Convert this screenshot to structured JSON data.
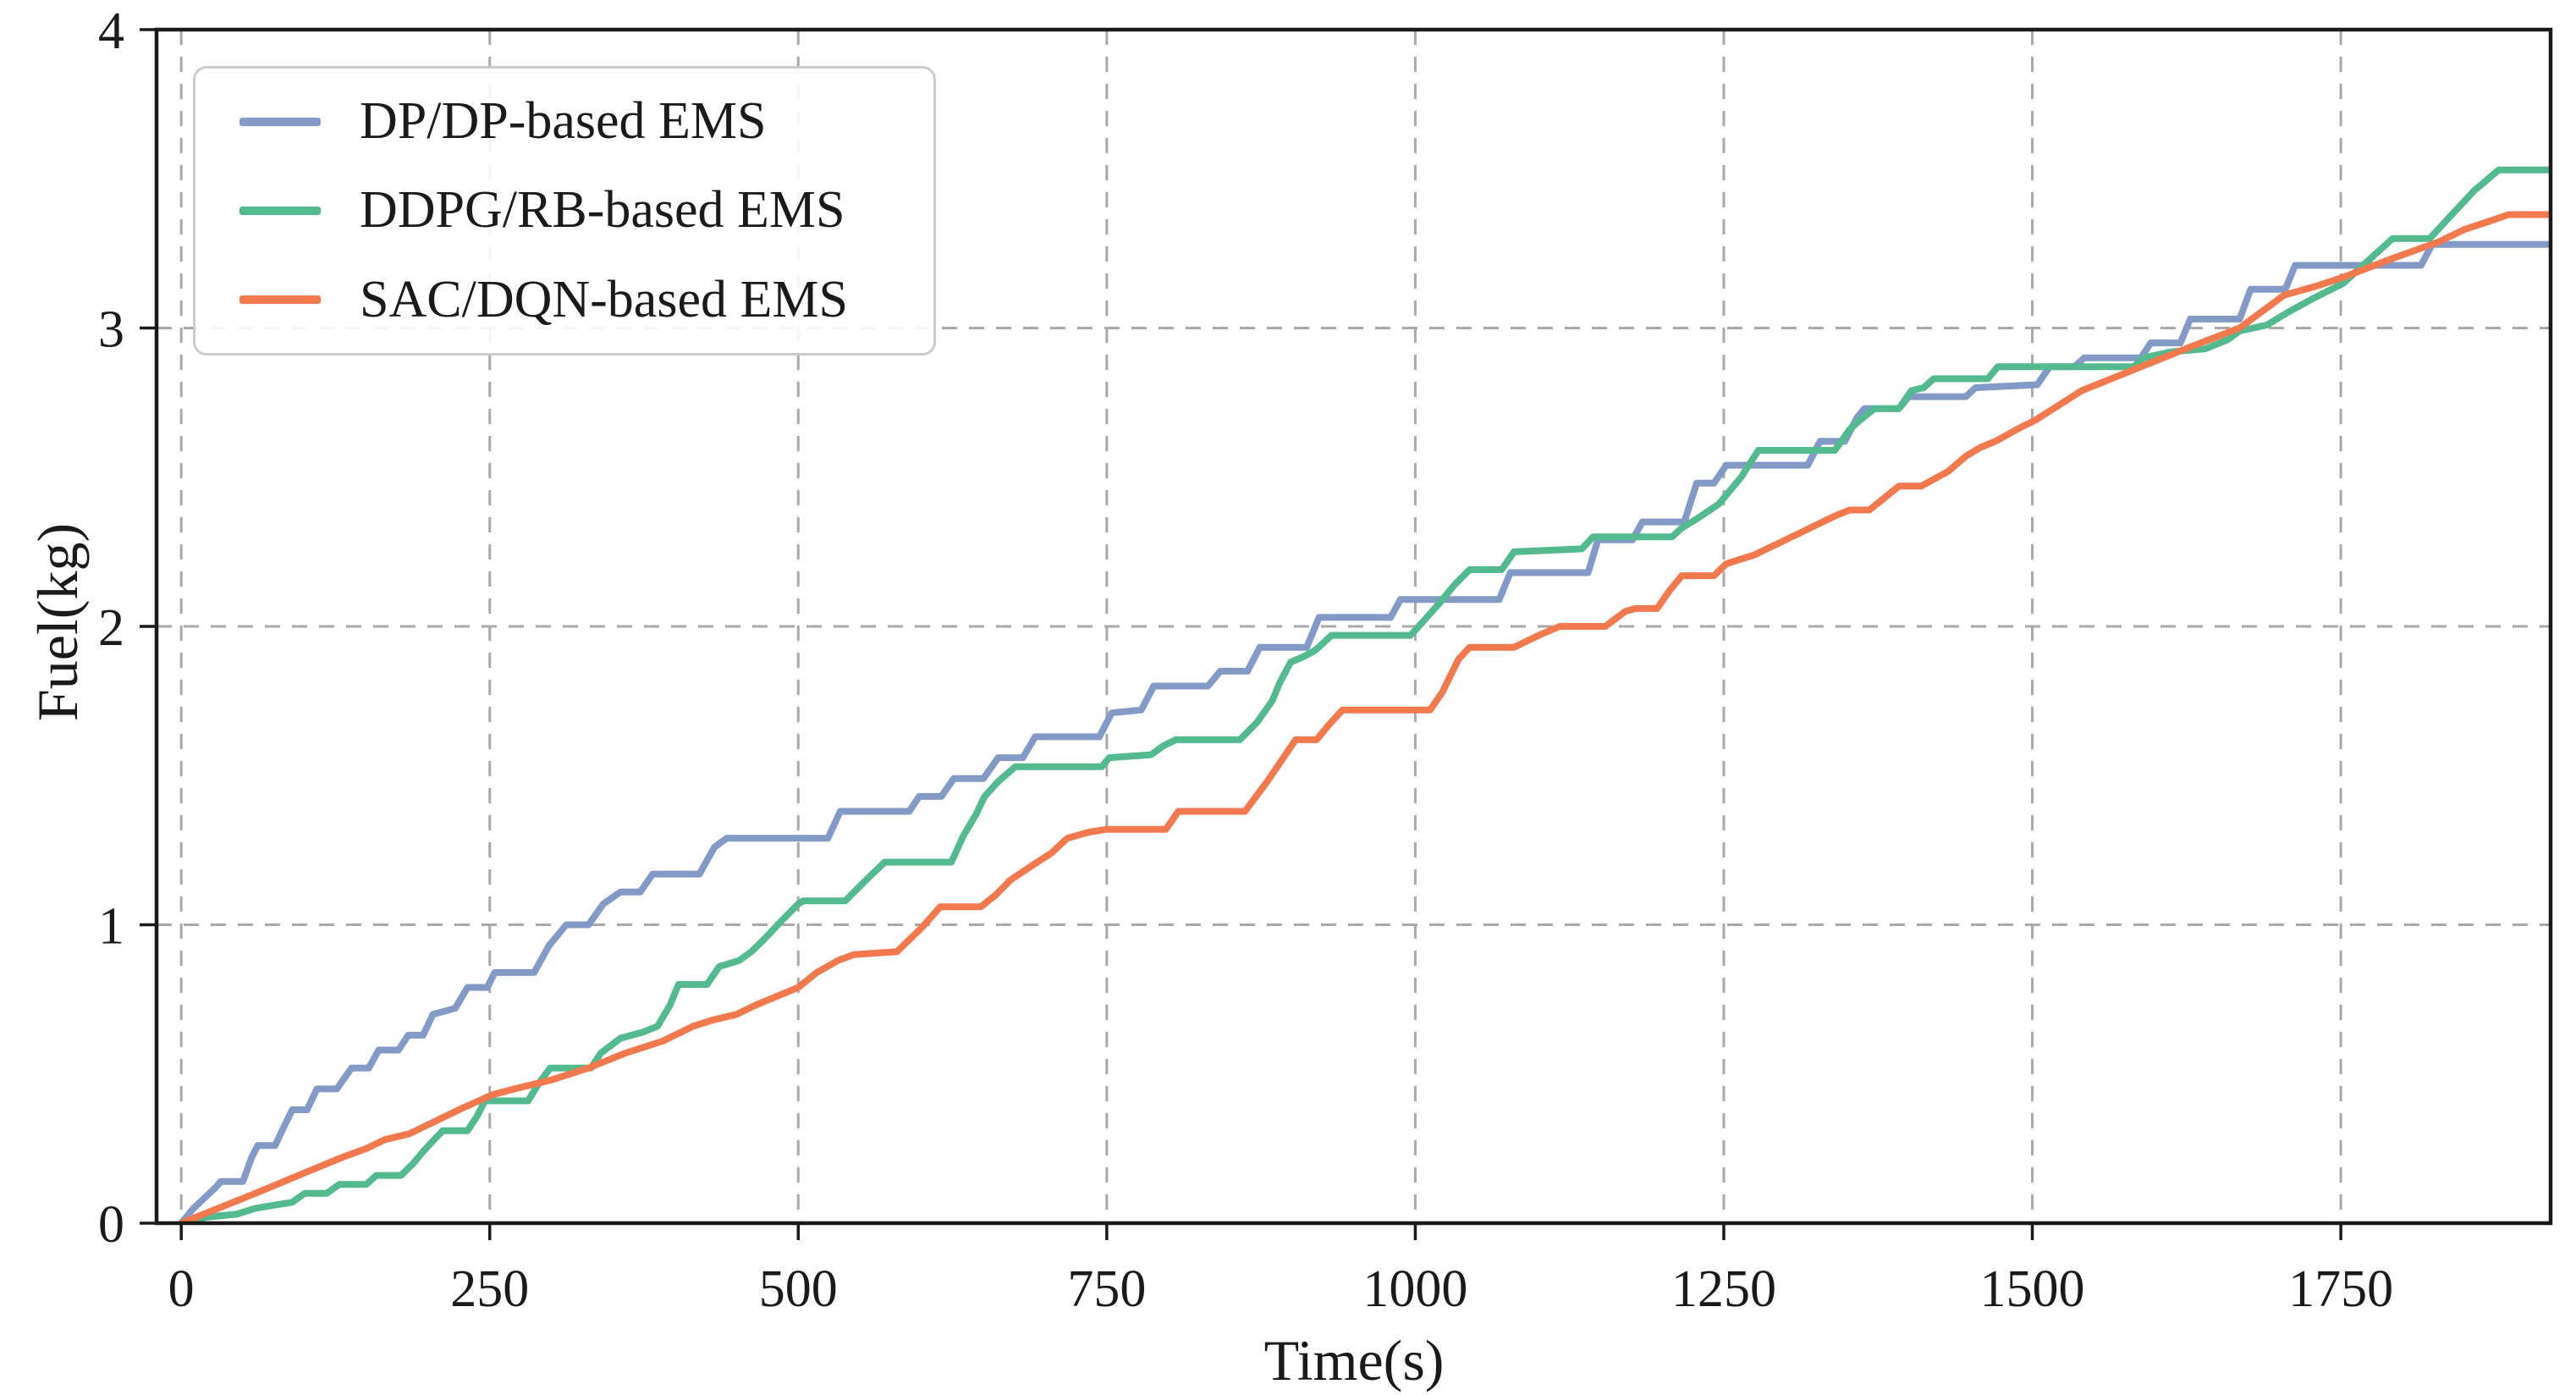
{
  "chart_data": {
    "type": "line",
    "title": "",
    "xlabel": "Time(s)",
    "ylabel": "Fuel(kg)",
    "xlim": [
      -20,
      1920
    ],
    "ylim": [
      0,
      4
    ],
    "xticks": [
      0,
      250,
      500,
      750,
      1000,
      1250,
      1500,
      1750
    ],
    "yticks": [
      0,
      1,
      2,
      3,
      4
    ],
    "grid": true,
    "grid_style": "dashed",
    "grid_color": "#a9a9a9",
    "spine_color": "#1a1a1a",
    "legend_position": "upper left",
    "series": [
      {
        "name": "DP/DP-based EMS",
        "color": "#8399C6",
        "points": [
          [
            0,
            0
          ],
          [
            10,
            0.05
          ],
          [
            28,
            0.12
          ],
          [
            32,
            0.14
          ],
          [
            50,
            0.14
          ],
          [
            57,
            0.22
          ],
          [
            62,
            0.26
          ],
          [
            76,
            0.26
          ],
          [
            84,
            0.33
          ],
          [
            90,
            0.38
          ],
          [
            102,
            0.38
          ],
          [
            110,
            0.45
          ],
          [
            126,
            0.45
          ],
          [
            138,
            0.52
          ],
          [
            152,
            0.52
          ],
          [
            160,
            0.58
          ],
          [
            176,
            0.58
          ],
          [
            184,
            0.63
          ],
          [
            196,
            0.63
          ],
          [
            204,
            0.7
          ],
          [
            222,
            0.72
          ],
          [
            232,
            0.79
          ],
          [
            248,
            0.79
          ],
          [
            254,
            0.84
          ],
          [
            286,
            0.84
          ],
          [
            298,
            0.93
          ],
          [
            312,
            1.0
          ],
          [
            330,
            1.0
          ],
          [
            342,
            1.07
          ],
          [
            356,
            1.11
          ],
          [
            372,
            1.11
          ],
          [
            382,
            1.17
          ],
          [
            420,
            1.17
          ],
          [
            432,
            1.26
          ],
          [
            442,
            1.29
          ],
          [
            524,
            1.29
          ],
          [
            534,
            1.38
          ],
          [
            590,
            1.38
          ],
          [
            598,
            1.43
          ],
          [
            616,
            1.43
          ],
          [
            626,
            1.49
          ],
          [
            650,
            1.49
          ],
          [
            662,
            1.56
          ],
          [
            682,
            1.56
          ],
          [
            692,
            1.63
          ],
          [
            744,
            1.63
          ],
          [
            754,
            1.71
          ],
          [
            778,
            1.72
          ],
          [
            788,
            1.8
          ],
          [
            832,
            1.8
          ],
          [
            842,
            1.85
          ],
          [
            864,
            1.85
          ],
          [
            874,
            1.93
          ],
          [
            912,
            1.93
          ],
          [
            922,
            2.03
          ],
          [
            980,
            2.03
          ],
          [
            988,
            2.09
          ],
          [
            1068,
            2.09
          ],
          [
            1077,
            2.18
          ],
          [
            1140,
            2.18
          ],
          [
            1148,
            2.29
          ],
          [
            1176,
            2.29
          ],
          [
            1184,
            2.35
          ],
          [
            1218,
            2.35
          ],
          [
            1228,
            2.48
          ],
          [
            1242,
            2.48
          ],
          [
            1252,
            2.54
          ],
          [
            1318,
            2.54
          ],
          [
            1328,
            2.62
          ],
          [
            1348,
            2.62
          ],
          [
            1358,
            2.7
          ],
          [
            1364,
            2.73
          ],
          [
            1392,
            2.73
          ],
          [
            1400,
            2.77
          ],
          [
            1446,
            2.77
          ],
          [
            1454,
            2.8
          ],
          [
            1504,
            2.81
          ],
          [
            1514,
            2.87
          ],
          [
            1534,
            2.87
          ],
          [
            1542,
            2.9
          ],
          [
            1588,
            2.9
          ],
          [
            1596,
            2.95
          ],
          [
            1620,
            2.95
          ],
          [
            1628,
            3.03
          ],
          [
            1668,
            3.03
          ],
          [
            1677,
            3.13
          ],
          [
            1705,
            3.13
          ],
          [
            1713,
            3.21
          ],
          [
            1815,
            3.21
          ],
          [
            1824,
            3.28
          ],
          [
            1920,
            3.28
          ]
        ]
      },
      {
        "name": "DDPG/RB-based EMS",
        "color": "#53B98F",
        "points": [
          [
            0,
            0
          ],
          [
            20,
            0.02
          ],
          [
            45,
            0.03
          ],
          [
            60,
            0.05
          ],
          [
            90,
            0.07
          ],
          [
            100,
            0.1
          ],
          [
            118,
            0.1
          ],
          [
            128,
            0.13
          ],
          [
            150,
            0.13
          ],
          [
            158,
            0.16
          ],
          [
            178,
            0.16
          ],
          [
            188,
            0.2
          ],
          [
            196,
            0.24
          ],
          [
            205,
            0.28
          ],
          [
            212,
            0.31
          ],
          [
            232,
            0.31
          ],
          [
            240,
            0.36
          ],
          [
            246,
            0.41
          ],
          [
            281,
            0.41
          ],
          [
            290,
            0.47
          ],
          [
            299,
            0.52
          ],
          [
            332,
            0.52
          ],
          [
            340,
            0.57
          ],
          [
            356,
            0.62
          ],
          [
            374,
            0.64
          ],
          [
            386,
            0.66
          ],
          [
            396,
            0.73
          ],
          [
            403,
            0.8
          ],
          [
            426,
            0.8
          ],
          [
            436,
            0.86
          ],
          [
            452,
            0.88
          ],
          [
            462,
            0.91
          ],
          [
            472,
            0.95
          ],
          [
            488,
            1.02
          ],
          [
            500,
            1.07
          ],
          [
            504,
            1.08
          ],
          [
            538,
            1.08
          ],
          [
            555,
            1.15
          ],
          [
            570,
            1.21
          ],
          [
            624,
            1.21
          ],
          [
            634,
            1.3
          ],
          [
            644,
            1.37
          ],
          [
            651,
            1.43
          ],
          [
            662,
            1.48
          ],
          [
            676,
            1.53
          ],
          [
            746,
            1.53
          ],
          [
            752,
            1.56
          ],
          [
            786,
            1.57
          ],
          [
            796,
            1.6
          ],
          [
            806,
            1.62
          ],
          [
            858,
            1.62
          ],
          [
            872,
            1.68
          ],
          [
            884,
            1.75
          ],
          [
            890,
            1.81
          ],
          [
            899,
            1.88
          ],
          [
            910,
            1.9
          ],
          [
            919,
            1.92
          ],
          [
            932,
            1.97
          ],
          [
            996,
            1.97
          ],
          [
            1005,
            2.01
          ],
          [
            1020,
            2.08
          ],
          [
            1032,
            2.14
          ],
          [
            1044,
            2.19
          ],
          [
            1070,
            2.19
          ],
          [
            1080,
            2.25
          ],
          [
            1135,
            2.26
          ],
          [
            1144,
            2.3
          ],
          [
            1208,
            2.3
          ],
          [
            1216,
            2.33
          ],
          [
            1228,
            2.36
          ],
          [
            1246,
            2.41
          ],
          [
            1256,
            2.46
          ],
          [
            1264,
            2.5
          ],
          [
            1278,
            2.59
          ],
          [
            1340,
            2.59
          ],
          [
            1352,
            2.66
          ],
          [
            1360,
            2.69
          ],
          [
            1372,
            2.73
          ],
          [
            1392,
            2.73
          ],
          [
            1402,
            2.79
          ],
          [
            1412,
            2.8
          ],
          [
            1420,
            2.83
          ],
          [
            1464,
            2.83
          ],
          [
            1472,
            2.87
          ],
          [
            1582,
            2.87
          ],
          [
            1590,
            2.9
          ],
          [
            1612,
            2.92
          ],
          [
            1640,
            2.93
          ],
          [
            1658,
            2.96
          ],
          [
            1668,
            2.99
          ],
          [
            1690,
            3.01
          ],
          [
            1706,
            3.05
          ],
          [
            1728,
            3.1
          ],
          [
            1752,
            3.15
          ],
          [
            1768,
            3.21
          ],
          [
            1784,
            3.27
          ],
          [
            1792,
            3.3
          ],
          [
            1822,
            3.3
          ],
          [
            1840,
            3.38
          ],
          [
            1858,
            3.46
          ],
          [
            1878,
            3.53
          ],
          [
            1920,
            3.53
          ]
        ]
      },
      {
        "name": "SAC/DQN-based EMS",
        "color": "#F2794E",
        "points": [
          [
            0,
            0
          ],
          [
            30,
            0.05
          ],
          [
            60,
            0.1
          ],
          [
            95,
            0.16
          ],
          [
            130,
            0.22
          ],
          [
            150,
            0.25
          ],
          [
            165,
            0.28
          ],
          [
            185,
            0.3
          ],
          [
            200,
            0.33
          ],
          [
            225,
            0.38
          ],
          [
            252,
            0.43
          ],
          [
            270,
            0.45
          ],
          [
            300,
            0.48
          ],
          [
            330,
            0.52
          ],
          [
            360,
            0.57
          ],
          [
            390,
            0.61
          ],
          [
            415,
            0.66
          ],
          [
            430,
            0.68
          ],
          [
            450,
            0.7
          ],
          [
            465,
            0.73
          ],
          [
            500,
            0.79
          ],
          [
            515,
            0.84
          ],
          [
            532,
            0.88
          ],
          [
            545,
            0.9
          ],
          [
            580,
            0.91
          ],
          [
            600,
            0.99
          ],
          [
            615,
            1.06
          ],
          [
            648,
            1.06
          ],
          [
            660,
            1.1
          ],
          [
            672,
            1.15
          ],
          [
            690,
            1.2
          ],
          [
            705,
            1.24
          ],
          [
            718,
            1.29
          ],
          [
            735,
            1.31
          ],
          [
            750,
            1.32
          ],
          [
            798,
            1.32
          ],
          [
            808,
            1.38
          ],
          [
            862,
            1.38
          ],
          [
            880,
            1.48
          ],
          [
            903,
            1.62
          ],
          [
            920,
            1.62
          ],
          [
            930,
            1.67
          ],
          [
            941,
            1.72
          ],
          [
            1012,
            1.72
          ],
          [
            1022,
            1.78
          ],
          [
            1035,
            1.89
          ],
          [
            1044,
            1.93
          ],
          [
            1080,
            1.93
          ],
          [
            1100,
            1.97
          ],
          [
            1117,
            2.0
          ],
          [
            1154,
            2.0
          ],
          [
            1170,
            2.05
          ],
          [
            1178,
            2.06
          ],
          [
            1196,
            2.06
          ],
          [
            1206,
            2.12
          ],
          [
            1216,
            2.17
          ],
          [
            1242,
            2.17
          ],
          [
            1252,
            2.21
          ],
          [
            1275,
            2.24
          ],
          [
            1300,
            2.29
          ],
          [
            1320,
            2.33
          ],
          [
            1340,
            2.37
          ],
          [
            1352,
            2.39
          ],
          [
            1368,
            2.39
          ],
          [
            1380,
            2.43
          ],
          [
            1392,
            2.47
          ],
          [
            1410,
            2.47
          ],
          [
            1432,
            2.52
          ],
          [
            1446,
            2.57
          ],
          [
            1458,
            2.6
          ],
          [
            1470,
            2.62
          ],
          [
            1492,
            2.67
          ],
          [
            1502,
            2.69
          ],
          [
            1540,
            2.79
          ],
          [
            1570,
            2.84
          ],
          [
            1600,
            2.89
          ],
          [
            1630,
            2.94
          ],
          [
            1668,
            3.0
          ],
          [
            1704,
            3.11
          ],
          [
            1730,
            3.14
          ],
          [
            1752,
            3.17
          ],
          [
            1790,
            3.23
          ],
          [
            1810,
            3.26
          ],
          [
            1830,
            3.29
          ],
          [
            1850,
            3.33
          ],
          [
            1872,
            3.36
          ],
          [
            1886,
            3.38
          ],
          [
            1920,
            3.38
          ]
        ]
      }
    ]
  }
}
